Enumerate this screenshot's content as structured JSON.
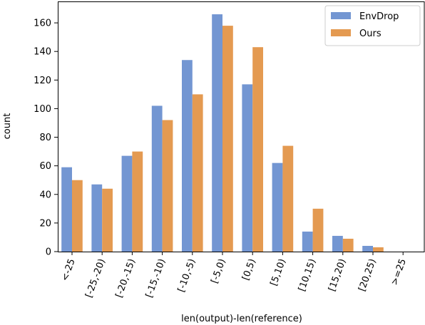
{
  "chart_data": {
    "type": "bar",
    "categories": [
      "<-25",
      "[-25,-20)",
      "[-20,-15)",
      "[-15,-10)",
      "[-10,-5)",
      "[-5,0)",
      "[0,5)",
      "[5,10)",
      "[10,15)",
      "[15,20)",
      "[20,25)",
      ">=25"
    ],
    "series": [
      {
        "name": "EnvDrop",
        "color": "#7396d2",
        "values": [
          59,
          47,
          67,
          102,
          134,
          166,
          117,
          62,
          14,
          11,
          4,
          0
        ]
      },
      {
        "name": "Ours",
        "color": "#e49a51",
        "values": [
          50,
          44,
          70,
          92,
          110,
          158,
          143,
          74,
          30,
          9,
          3,
          0
        ]
      }
    ],
    "xlabel": "len(output)-len(reference)",
    "ylabel": "count",
    "ylim": [
      0,
      175
    ],
    "yticks": [
      0,
      20,
      40,
      60,
      80,
      100,
      120,
      140,
      160
    ],
    "grid": false,
    "legend": "top-right"
  }
}
